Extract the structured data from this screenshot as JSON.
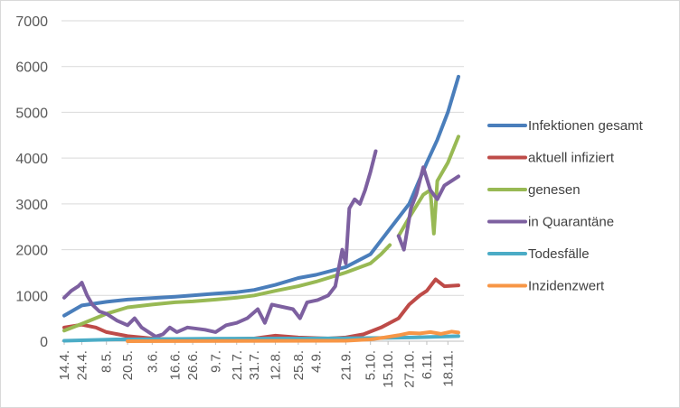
{
  "chart_data": {
    "type": "line",
    "title": "",
    "xlabel": "",
    "ylabel": "",
    "ylim": [
      0,
      7000
    ],
    "y_ticks": [
      0,
      1000,
      2000,
      3000,
      4000,
      5000,
      6000,
      7000
    ],
    "grid": "horizontal",
    "legend_position": "right",
    "x_tick_labels": [
      "14.4.",
      "24.4.",
      "8.5.",
      "20.5.",
      "3.6.",
      "16.6.",
      "26.6.",
      "9.7.",
      "21.7.",
      "31.7.",
      "12.8.",
      "25.8.",
      "4.9.",
      "21.9.",
      "5.10.",
      "15.10.",
      "27.10.",
      "6.11.",
      "18.11."
    ],
    "x_tick_days": [
      0,
      10,
      24,
      36,
      50,
      63,
      73,
      86,
      98,
      108,
      120,
      133,
      143,
      160,
      174,
      184,
      196,
      206,
      218
    ],
    "x_range_days": [
      0,
      224
    ],
    "series": [
      {
        "name": "Infektionen gesamt",
        "color": "#4a7ebb",
        "points": [
          [
            0,
            560
          ],
          [
            10,
            780
          ],
          [
            24,
            860
          ],
          [
            36,
            910
          ],
          [
            50,
            940
          ],
          [
            63,
            970
          ],
          [
            73,
            1000
          ],
          [
            86,
            1040
          ],
          [
            98,
            1070
          ],
          [
            108,
            1120
          ],
          [
            120,
            1230
          ],
          [
            133,
            1380
          ],
          [
            143,
            1450
          ],
          [
            160,
            1620
          ],
          [
            174,
            1900
          ],
          [
            184,
            2400
          ],
          [
            196,
            3000
          ],
          [
            206,
            3900
          ],
          [
            212,
            4400
          ],
          [
            218,
            5000
          ],
          [
            224,
            5780
          ]
        ]
      },
      {
        "name": "aktuell infiziert",
        "color": "#be4b48",
        "points": [
          [
            0,
            300
          ],
          [
            10,
            360
          ],
          [
            18,
            300
          ],
          [
            24,
            200
          ],
          [
            36,
            110
          ],
          [
            50,
            60
          ],
          [
            63,
            40
          ],
          [
            86,
            40
          ],
          [
            108,
            60
          ],
          [
            120,
            120
          ],
          [
            133,
            80
          ],
          [
            150,
            60
          ],
          [
            160,
            80
          ],
          [
            170,
            150
          ],
          [
            180,
            300
          ],
          [
            190,
            500
          ],
          [
            196,
            800
          ],
          [
            202,
            1000
          ],
          [
            206,
            1100
          ],
          [
            211,
            1350
          ],
          [
            216,
            1200
          ],
          [
            224,
            1220
          ]
        ]
      },
      {
        "name": "genesen",
        "color": "#98b954",
        "points": [
          [
            0,
            230
          ],
          [
            10,
            380
          ],
          [
            24,
            600
          ],
          [
            36,
            740
          ],
          [
            50,
            800
          ],
          [
            63,
            850
          ],
          [
            73,
            870
          ],
          [
            86,
            910
          ],
          [
            98,
            950
          ],
          [
            108,
            1000
          ],
          [
            120,
            1100
          ],
          [
            133,
            1200
          ],
          [
            143,
            1300
          ],
          [
            160,
            1500
          ],
          [
            174,
            1700
          ],
          [
            180,
            1900
          ],
          [
            185,
            2100
          ],
          [
            187,
            null
          ],
          [
            190,
            2300
          ],
          [
            196,
            2700
          ],
          [
            204,
            3200
          ],
          [
            208,
            3300
          ],
          [
            210,
            2350
          ],
          [
            212,
            3500
          ],
          [
            218,
            3900
          ],
          [
            224,
            4470
          ]
        ]
      },
      {
        "name": "in Quarantäne",
        "color": "#7d60a0",
        "points": [
          [
            0,
            950
          ],
          [
            4,
            1100
          ],
          [
            8,
            1200
          ],
          [
            10,
            1280
          ],
          [
            13,
            1000
          ],
          [
            16,
            800
          ],
          [
            20,
            650
          ],
          [
            24,
            600
          ],
          [
            30,
            450
          ],
          [
            36,
            350
          ],
          [
            40,
            500
          ],
          [
            44,
            300
          ],
          [
            48,
            200
          ],
          [
            52,
            100
          ],
          [
            56,
            150
          ],
          [
            60,
            300
          ],
          [
            64,
            200
          ],
          [
            70,
            300
          ],
          [
            80,
            250
          ],
          [
            86,
            200
          ],
          [
            92,
            350
          ],
          [
            98,
            400
          ],
          [
            104,
            500
          ],
          [
            110,
            700
          ],
          [
            114,
            400
          ],
          [
            118,
            800
          ],
          [
            124,
            750
          ],
          [
            130,
            700
          ],
          [
            134,
            500
          ],
          [
            138,
            850
          ],
          [
            144,
            900
          ],
          [
            150,
            1000
          ],
          [
            154,
            1200
          ],
          [
            158,
            2000
          ],
          [
            160,
            1700
          ],
          [
            162,
            2900
          ],
          [
            165,
            3100
          ],
          [
            168,
            3000
          ],
          [
            171,
            3300
          ],
          [
            174,
            3700
          ],
          [
            177,
            4150
          ],
          [
            178,
            null
          ],
          [
            190,
            2300
          ],
          [
            193,
            2000
          ],
          [
            197,
            2900
          ],
          [
            200,
            3200
          ],
          [
            204,
            3800
          ],
          [
            208,
            3300
          ],
          [
            212,
            3100
          ],
          [
            216,
            3400
          ],
          [
            224,
            3600
          ]
        ]
      },
      {
        "name": "Todesfälle",
        "color": "#4bacc6",
        "points": [
          [
            0,
            10
          ],
          [
            30,
            40
          ],
          [
            80,
            55
          ],
          [
            140,
            60
          ],
          [
            180,
            70
          ],
          [
            200,
            85
          ],
          [
            224,
            110
          ]
        ]
      },
      {
        "name": "Inzidenzwert",
        "color": "#f79646",
        "points": [
          [
            36,
            0
          ],
          [
            160,
            10
          ],
          [
            174,
            40
          ],
          [
            182,
            80
          ],
          [
            190,
            130
          ],
          [
            196,
            180
          ],
          [
            202,
            170
          ],
          [
            208,
            200
          ],
          [
            214,
            160
          ],
          [
            220,
            210
          ],
          [
            224,
            190
          ]
        ]
      }
    ]
  }
}
